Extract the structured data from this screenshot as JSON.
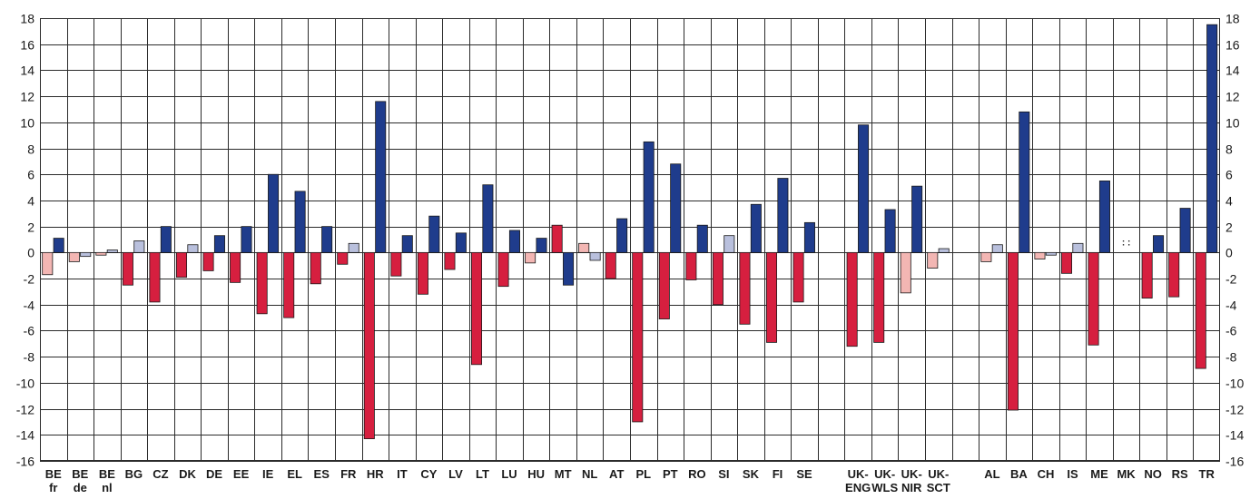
{
  "chart_data": {
    "type": "bar",
    "ylim": [
      -16,
      18
    ],
    "yticks": [
      -16,
      -14,
      -12,
      -10,
      -8,
      -6,
      -4,
      -2,
      0,
      2,
      4,
      6,
      8,
      10,
      12,
      14,
      16,
      18
    ],
    "grid": true,
    "colors": {
      "positive_significant": "#1f3c8c",
      "positive_not_significant": "#b9c0dd",
      "negative_significant": "#d61f3f",
      "negative_not_significant": "#f3b6b3"
    },
    "categories": [
      {
        "label": [
          "BE",
          "fr"
        ],
        "pos": 1.1,
        "pos_sig": true,
        "neg": -1.7,
        "neg_sig": false
      },
      {
        "label": [
          "BE",
          "de"
        ],
        "pos": -0.3,
        "pos_sig": false,
        "neg": -0.7,
        "neg_sig": false
      },
      {
        "label": [
          "BE",
          "nl"
        ],
        "pos": 0.2,
        "pos_sig": false,
        "neg": -0.2,
        "neg_sig": false
      },
      {
        "label": [
          "BG"
        ],
        "pos": 0.9,
        "pos_sig": false,
        "neg": -2.5,
        "neg_sig": true
      },
      {
        "label": [
          "CZ"
        ],
        "pos": 2.0,
        "pos_sig": true,
        "neg": -3.8,
        "neg_sig": true
      },
      {
        "label": [
          "DK"
        ],
        "pos": 0.6,
        "pos_sig": false,
        "neg": -1.9,
        "neg_sig": true
      },
      {
        "label": [
          "DE"
        ],
        "pos": 1.3,
        "pos_sig": true,
        "neg": -1.4,
        "neg_sig": true
      },
      {
        "label": [
          "EE"
        ],
        "pos": 2.0,
        "pos_sig": true,
        "neg": -2.3,
        "neg_sig": true
      },
      {
        "label": [
          "IE"
        ],
        "pos": 6.0,
        "pos_sig": true,
        "neg": -4.7,
        "neg_sig": true
      },
      {
        "label": [
          "EL"
        ],
        "pos": 4.7,
        "pos_sig": true,
        "neg": -5.0,
        "neg_sig": true
      },
      {
        "label": [
          "ES"
        ],
        "pos": 2.0,
        "pos_sig": true,
        "neg": -2.4,
        "neg_sig": true
      },
      {
        "label": [
          "FR"
        ],
        "pos": 0.7,
        "pos_sig": false,
        "neg": -0.9,
        "neg_sig": true
      },
      {
        "label": [
          "HR"
        ],
        "pos": 11.6,
        "pos_sig": true,
        "neg": -14.3,
        "neg_sig": true
      },
      {
        "label": [
          "IT"
        ],
        "pos": 1.3,
        "pos_sig": true,
        "neg": -1.8,
        "neg_sig": true
      },
      {
        "label": [
          "CY"
        ],
        "pos": 2.8,
        "pos_sig": true,
        "neg": -3.2,
        "neg_sig": true
      },
      {
        "label": [
          "LV"
        ],
        "pos": 1.5,
        "pos_sig": true,
        "neg": -1.3,
        "neg_sig": true
      },
      {
        "label": [
          "LT"
        ],
        "pos": 5.2,
        "pos_sig": true,
        "neg": -8.6,
        "neg_sig": true
      },
      {
        "label": [
          "LU"
        ],
        "pos": 1.7,
        "pos_sig": true,
        "neg": -2.6,
        "neg_sig": true
      },
      {
        "label": [
          "HU"
        ],
        "pos": 1.1,
        "pos_sig": true,
        "neg": -0.8,
        "neg_sig": false
      },
      {
        "label": [
          "MT"
        ],
        "pos": -2.5,
        "pos_sig": true,
        "neg": 2.1,
        "neg_sig": true
      },
      {
        "label": [
          "NL"
        ],
        "pos": -0.6,
        "pos_sig": false,
        "neg": 0.7,
        "neg_sig": false
      },
      {
        "label": [
          "AT"
        ],
        "pos": 2.6,
        "pos_sig": true,
        "neg": -2.0,
        "neg_sig": true
      },
      {
        "label": [
          "PL"
        ],
        "pos": 8.5,
        "pos_sig": true,
        "neg": -13.0,
        "neg_sig": true
      },
      {
        "label": [
          "PT"
        ],
        "pos": 6.8,
        "pos_sig": true,
        "neg": -5.1,
        "neg_sig": true
      },
      {
        "label": [
          "RO"
        ],
        "pos": 2.1,
        "pos_sig": true,
        "neg": -2.1,
        "neg_sig": true
      },
      {
        "label": [
          "SI"
        ],
        "pos": 1.3,
        "pos_sig": false,
        "neg": -4.0,
        "neg_sig": true
      },
      {
        "label": [
          "SK"
        ],
        "pos": 3.7,
        "pos_sig": true,
        "neg": -5.5,
        "neg_sig": true
      },
      {
        "label": [
          "FI"
        ],
        "pos": 5.7,
        "pos_sig": true,
        "neg": -6.9,
        "neg_sig": true
      },
      {
        "label": [
          "SE"
        ],
        "pos": 2.3,
        "pos_sig": true,
        "neg": -3.8,
        "neg_sig": true
      },
      null,
      {
        "label": [
          "UK-",
          "ENG"
        ],
        "pos": 9.8,
        "pos_sig": true,
        "neg": -7.2,
        "neg_sig": true
      },
      {
        "label": [
          "UK-",
          "WLS"
        ],
        "pos": 3.3,
        "pos_sig": true,
        "neg": -6.9,
        "neg_sig": true
      },
      {
        "label": [
          "UK-",
          "NIR"
        ],
        "pos": 5.1,
        "pos_sig": true,
        "neg": -3.1,
        "neg_sig": false
      },
      {
        "label": [
          "UK-",
          "SCT"
        ],
        "pos": 0.3,
        "pos_sig": false,
        "neg": -1.2,
        "neg_sig": false
      },
      null,
      {
        "label": [
          "AL"
        ],
        "pos": 0.6,
        "pos_sig": false,
        "neg": -0.7,
        "neg_sig": false
      },
      {
        "label": [
          "BA"
        ],
        "pos": 10.8,
        "pos_sig": true,
        "neg": -12.1,
        "neg_sig": true
      },
      {
        "label": [
          "CH"
        ],
        "pos": -0.2,
        "pos_sig": false,
        "neg": -0.5,
        "neg_sig": false
      },
      {
        "label": [
          "IS"
        ],
        "pos": 0.7,
        "pos_sig": false,
        "neg": -1.6,
        "neg_sig": true
      },
      {
        "label": [
          "ME"
        ],
        "pos": 5.5,
        "pos_sig": true,
        "neg": -7.1,
        "neg_sig": true
      },
      {
        "label": [
          "MK"
        ],
        "pos": null,
        "pos_sig": false,
        "neg": null,
        "neg_sig": false,
        "not_available": true
      },
      {
        "label": [
          "NO"
        ],
        "pos": 1.3,
        "pos_sig": true,
        "neg": -3.5,
        "neg_sig": true
      },
      {
        "label": [
          "RS"
        ],
        "pos": 3.4,
        "pos_sig": true,
        "neg": -3.4,
        "neg_sig": true
      },
      {
        "label": [
          "TR"
        ],
        "pos": 17.5,
        "pos_sig": true,
        "neg": -8.9,
        "neg_sig": true
      }
    ]
  }
}
